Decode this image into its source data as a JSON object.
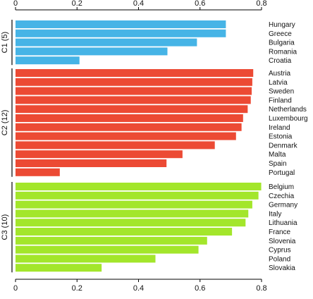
{
  "chart_data": {
    "type": "bar",
    "orientation": "horizontal",
    "xlim": [
      0,
      0.8
    ],
    "ticks": [
      0,
      0.2,
      0.4,
      0.6,
      0.8
    ],
    "tick_labels": [
      "0",
      "0.2",
      "0.4",
      "0.6",
      "0.8"
    ],
    "grid": false,
    "groups": [
      {
        "label": "C1 (5)",
        "color": "#46b4e6",
        "categories": [
          "Hungary",
          "Greece",
          "Bulgaria",
          "Romania",
          "Croatia"
        ],
        "values": [
          0.684,
          0.684,
          0.59,
          0.494,
          0.208
        ]
      },
      {
        "label": "C2 (12)",
        "color": "#ec4a34",
        "categories": [
          "Austria",
          "Latvia",
          "Sweden",
          "Finland",
          "Netherlands",
          "Luxembourg",
          "Ireland",
          "Estonia",
          "Denmark",
          "Malta",
          "Spain",
          "Portugal"
        ],
        "values": [
          0.773,
          0.77,
          0.768,
          0.765,
          0.755,
          0.74,
          0.735,
          0.717,
          0.648,
          0.543,
          0.491,
          0.144
        ]
      },
      {
        "label": "C3 (10)",
        "color": "#a3e62b",
        "categories": [
          "Belgium",
          "Czechia",
          "Germany",
          "Italy",
          "Lithuania",
          "France",
          "Slovenia",
          "Cyprus",
          "Poland",
          "Slovakia"
        ],
        "values": [
          0.799,
          0.79,
          0.77,
          0.757,
          0.748,
          0.704,
          0.623,
          0.595,
          0.455,
          0.28
        ]
      }
    ]
  }
}
